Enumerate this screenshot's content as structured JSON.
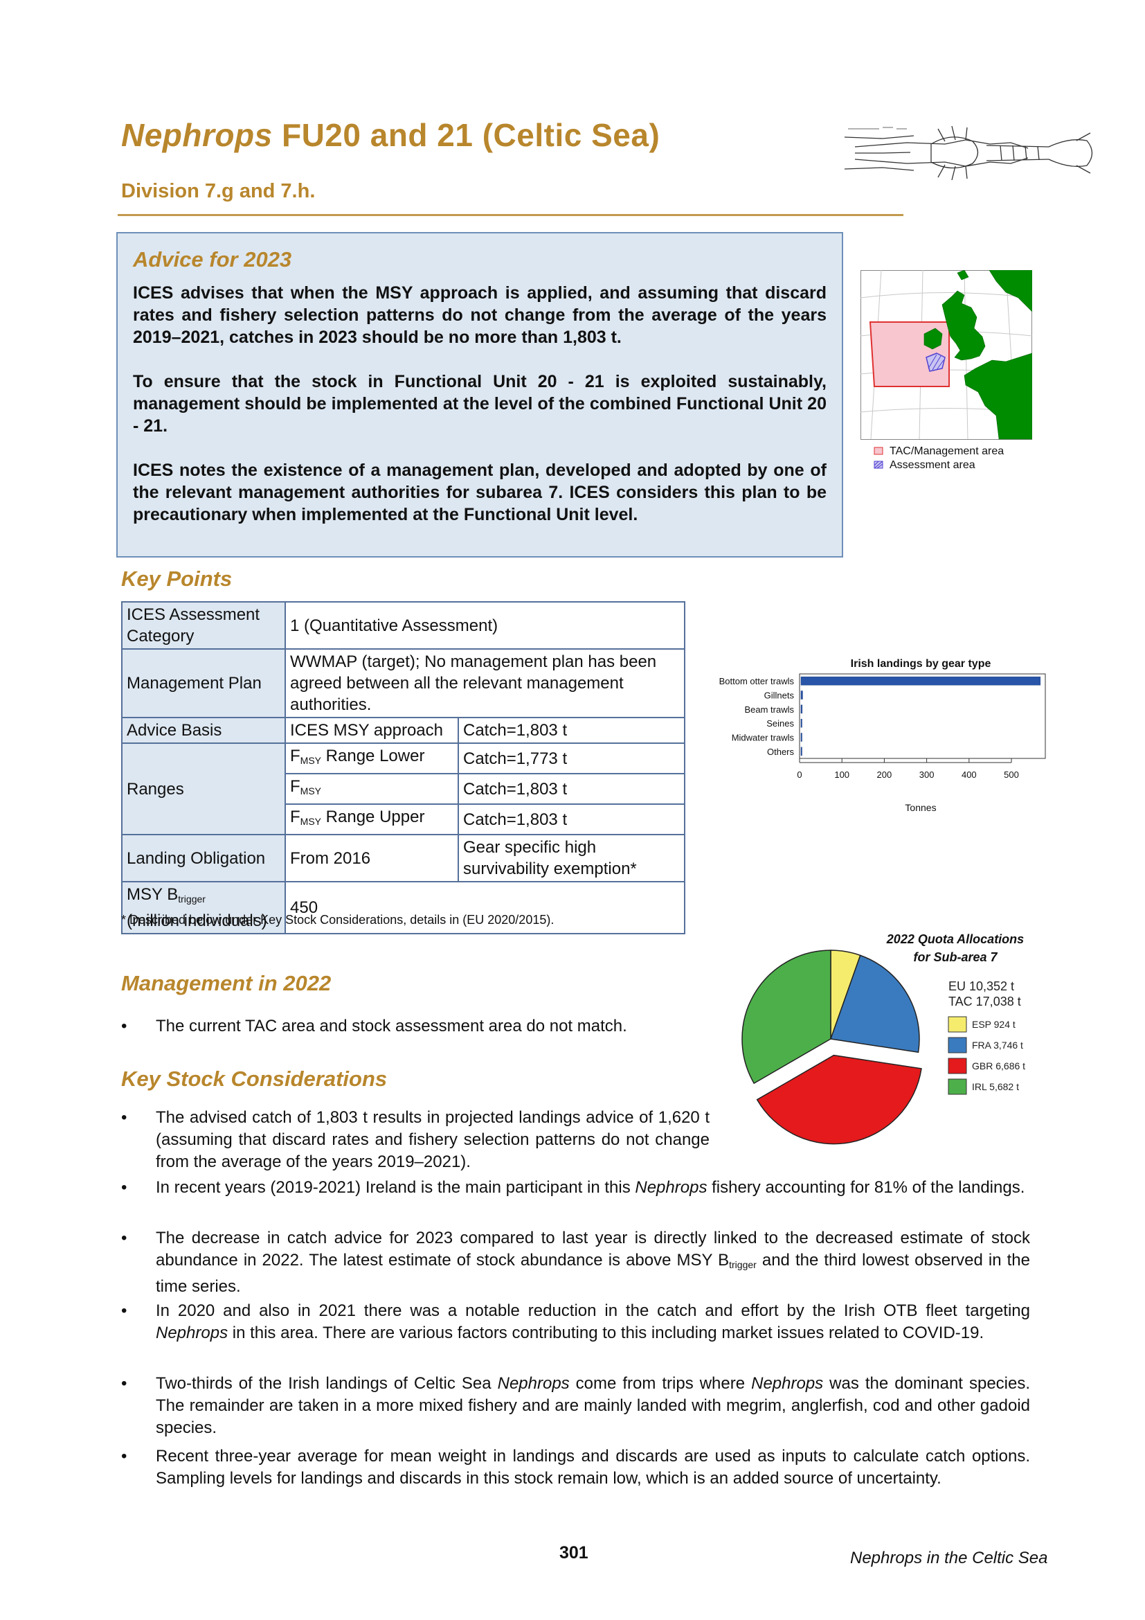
{
  "header": {
    "title_italic": "Nephrops",
    "title_rest": " FU20 and 21 (Celtic Sea)",
    "subtitle": "Division 7.g and 7.h."
  },
  "advice": {
    "heading": "Advice for 2023",
    "paragraphs": [
      "ICES advises that when the MSY approach is applied, and assuming that discard rates and fishery selection patterns do not change from the average of the years 2019–2021, catches in 2023 should be no more than 1,803 t.",
      "To ensure that the stock in Functional Unit 20 - 21 is exploited sustainably, management should be implemented at the level of the combined Functional Unit 20 - 21.",
      "ICES notes the existence of a management plan, developed and adopted by one of the relevant management authorities for subarea 7. ICES considers this plan to be precautionary when implemented at the Functional Unit level."
    ]
  },
  "map": {
    "legend": [
      "TAC/Management area",
      "Assessment area"
    ],
    "colors": {
      "sea": "#ffffff",
      "land": "#008c00",
      "tac": "#f7c6cf",
      "tac_border": "#e03030",
      "assessment": "#5040d0"
    }
  },
  "key_points": {
    "heading": "Key Points",
    "rows": {
      "category_label": "ICES Assessment Category",
      "category_value": "1 (Quantitative Assessment)",
      "plan_label": "Management Plan",
      "plan_value": "WWMAP (target); No management plan has been agreed between all the relevant management authorities.",
      "basis_label": "Advice Basis",
      "basis_value": "ICES MSY approach",
      "basis_catch": "Catch=1,803 t",
      "ranges_label": "Ranges",
      "r1_f": "F",
      "r1_sub": "MSY",
      "r1_rest": " Range Lower",
      "r1_catch": "Catch=1,773 t",
      "r2_f": "F",
      "r2_sub": "MSY",
      "r2_catch": "Catch=1,803 t",
      "r3_f": "F",
      "r3_sub": "MSY",
      "r3_rest": " Range Upper",
      "r3_catch": "Catch=1,803 t",
      "landing_label": "Landing Obligation",
      "landing_value": "From 2016",
      "landing_note": "Gear specific high survivability exemption*",
      "msy_label_main": "MSY B",
      "msy_label_sub": "trigger",
      "msy_label_unit": "(million individuals)",
      "msy_value": "450"
    },
    "footnote": "* Described below under Key Stock Considerations, details in (EU 2020/2015)."
  },
  "chart_data": [
    {
      "type": "bar",
      "orientation": "horizontal",
      "title": "Irish landings by gear type",
      "xlabel": "Tonnes",
      "categories": [
        "Bottom otter trawls",
        "Gillnets",
        "Beam trawls",
        "Seines",
        "Midwater trawls",
        "Others"
      ],
      "values": [
        565,
        4,
        3,
        2,
        1,
        1
      ],
      "xlim": [
        0,
        580
      ],
      "xticks": [
        "0",
        "100",
        "200",
        "300",
        "400",
        "500"
      ],
      "bar_color": "#2855a8"
    },
    {
      "type": "pie",
      "title": "2022 Quota Allocations for Sub-area 7",
      "title_lines": [
        "2022 Quota Allocations",
        "for Sub-area 7"
      ],
      "summary": [
        "EU 10,352 t",
        "TAC 17,038 t"
      ],
      "categories": [
        "ESP 924 t",
        "FRA 3,746 t",
        "GBR 6,686 t",
        "IRL 5,682 t"
      ],
      "values": [
        924,
        3746,
        6686,
        5682
      ],
      "colors": [
        "#f5ec6e",
        "#3a7bbf",
        "#e41a1c",
        "#4daf4a"
      ],
      "exploded": "GBR 6,686 t"
    }
  ],
  "management": {
    "heading": "Management in 2022",
    "bullet": "The current TAC area and stock assessment area do not match."
  },
  "considerations": {
    "heading": "Key Stock Considerations",
    "b1": "The advised catch of 1,803 t results in projected landings advice of 1,620 t (assuming that discard rates and fishery selection patterns do not change from the average of the years 2019–2021).",
    "b2_pre": "In recent years (2019-2021) Ireland is the main participant in this ",
    "b2_it": "Nephrops",
    "b2_post": " fishery accounting for 81% of the landings.",
    "b3_pre": "The decrease in catch advice for 2023 compared to last year is directly linked to the decreased estimate of stock abundance in 2022. The latest estimate of stock abundance is above MSY B",
    "b3_sub": "trigger",
    "b3_post": " and the third lowest observed in the time series.",
    "b4_pre": "In 2020 and also in 2021 there was a notable reduction in the catch and effort by the Irish OTB fleet targeting ",
    "b4_it": "Nephrops",
    "b4_post": " in this area.  There are various factors contributing to this including market issues related to COVID-19.",
    "b5_pre": "Two-thirds of the Irish landings of Celtic Sea ",
    "b5_it1": "Nephrops",
    "b5_mid": " come from trips where ",
    "b5_it2": "Nephrops",
    "b5_post": " was the dominant species. The remainder are taken in a more mixed fishery and are mainly landed with megrim, anglerfish, cod and other gadoid species.",
    "b6": "Recent three-year average for mean weight in landings and discards are used as inputs to calculate catch options. Sampling levels for landings and discards in this stock remain low, which is an added source of uncertainty."
  },
  "footer": {
    "page_number": "301",
    "running_title": "Nephrops in the Celtic Sea"
  }
}
